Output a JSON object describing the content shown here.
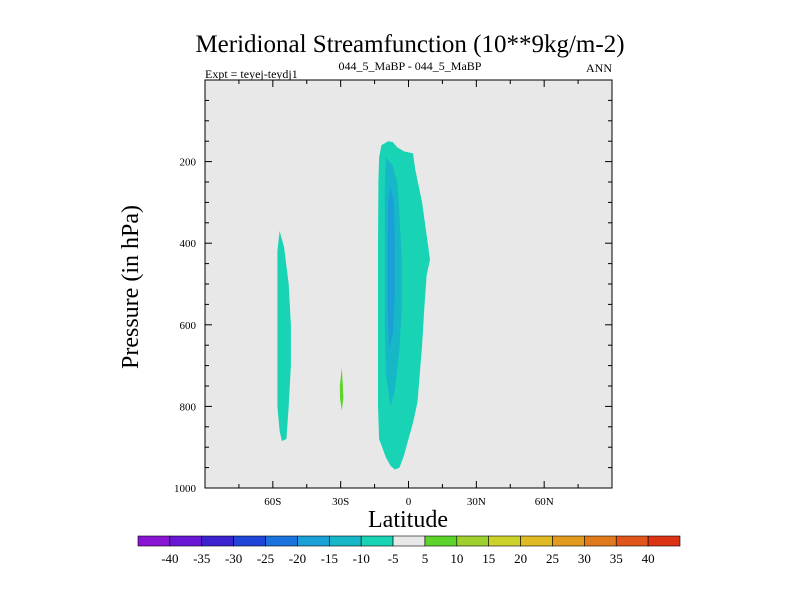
{
  "chart_data": {
    "type": "contour",
    "title": "Meridional Streamfunction (10**9kg/m-2)",
    "subtitle_left": "Expt = teyej-teydj1",
    "subtitle_center": "044_5_MaBP - 044_5_MaBP",
    "subtitle_right": "ANN",
    "xlabel": "Latitude",
    "ylabel": "Pressure (in hPa)",
    "xlim": [
      -90,
      90
    ],
    "ylim": [
      0,
      1000
    ],
    "y_inverted": true,
    "x_ticks": [
      {
        "value": -60,
        "label": "60S"
      },
      {
        "value": -30,
        "label": "30S"
      },
      {
        "value": 0,
        "label": "0"
      },
      {
        "value": 30,
        "label": "30N"
      },
      {
        "value": 60,
        "label": "60N"
      }
    ],
    "y_ticks": [
      {
        "value": 200,
        "label": "200"
      },
      {
        "value": 400,
        "label": "400"
      },
      {
        "value": 600,
        "label": "600"
      },
      {
        "value": 800,
        "label": "800"
      },
      {
        "value": 1000,
        "label": "1000"
      }
    ],
    "background_color": "#e8e8e8",
    "regions": [
      {
        "name": "southern-midlatitude-cell",
        "level": -5,
        "color": "#19d4b4",
        "polygon": [
          [
            -57,
            370
          ],
          [
            -55,
            410
          ],
          [
            -53,
            500
          ],
          [
            -52,
            600
          ],
          [
            -52,
            700
          ],
          [
            -53,
            800
          ],
          [
            -54,
            880
          ],
          [
            -56,
            885
          ],
          [
            -57,
            860
          ],
          [
            -58,
            800
          ],
          [
            -58,
            700
          ],
          [
            -58,
            600
          ],
          [
            -58,
            500
          ],
          [
            -58,
            420
          ]
        ]
      },
      {
        "name": "thirty-south-positive-spot",
        "level": 5,
        "color": "#5cd42b",
        "polygon": [
          [
            -29.5,
            705
          ],
          [
            -29,
            750
          ],
          [
            -28.8,
            780
          ],
          [
            -29.5,
            810
          ],
          [
            -30.3,
            780
          ],
          [
            -30.4,
            750
          ]
        ]
      },
      {
        "name": "equatorial-cell-outer",
        "level": -5,
        "color": "#19d4b4",
        "polygon": [
          [
            -12,
            160
          ],
          [
            -9,
            150
          ],
          [
            -7,
            152
          ],
          [
            -5,
            165
          ],
          [
            -2,
            175
          ],
          [
            2,
            180
          ],
          [
            3,
            220
          ],
          [
            6,
            300
          ],
          [
            8,
            380
          ],
          [
            9.5,
            440
          ],
          [
            8,
            480
          ],
          [
            7,
            560
          ],
          [
            6,
            650
          ],
          [
            5,
            720
          ],
          [
            4,
            790
          ],
          [
            2,
            840
          ],
          [
            0,
            880
          ],
          [
            -2,
            920
          ],
          [
            -4,
            950
          ],
          [
            -6,
            955
          ],
          [
            -8,
            945
          ],
          [
            -10,
            925
          ],
          [
            -13,
            880
          ],
          [
            -13.5,
            800
          ],
          [
            -13.5,
            600
          ],
          [
            -13.5,
            400
          ],
          [
            -13.3,
            250
          ],
          [
            -13,
            190
          ]
        ]
      },
      {
        "name": "equatorial-cell-inner",
        "level": -10,
        "color": "#16b8c8",
        "polygon": [
          [
            -10,
            190
          ],
          [
            -7,
            210
          ],
          [
            -5,
            250
          ],
          [
            -4,
            330
          ],
          [
            -3,
            440
          ],
          [
            -3,
            560
          ],
          [
            -4,
            660
          ],
          [
            -6,
            760
          ],
          [
            -8,
            800
          ],
          [
            -10,
            720
          ],
          [
            -10.5,
            600
          ],
          [
            -10.5,
            400
          ],
          [
            -10.5,
            260
          ]
        ]
      },
      {
        "name": "equatorial-cell-core",
        "level": -15,
        "color": "#1a9fd6",
        "polygon": [
          [
            -8,
            260
          ],
          [
            -6.5,
            300
          ],
          [
            -6,
            400
          ],
          [
            -6,
            520
          ],
          [
            -7,
            620
          ],
          [
            -8.5,
            660
          ],
          [
            -9.3,
            560
          ],
          [
            -9.3,
            400
          ],
          [
            -9,
            300
          ]
        ]
      }
    ],
    "colorbar": {
      "labels": [
        "-40",
        "-35",
        "-30",
        "-25",
        "-20",
        "-15",
        "-10",
        "-5",
        "5",
        "10",
        "15",
        "20",
        "25",
        "30",
        "35",
        "40"
      ],
      "colors": [
        "#8a14d4",
        "#6a16d6",
        "#3a22d0",
        "#1e45d8",
        "#1a72dc",
        "#1a9fd6",
        "#16b8c8",
        "#19d4b4",
        "#e8e8e8",
        "#5cd42b",
        "#9fd12e",
        "#cdd22a",
        "#e0ba22",
        "#e29a1e",
        "#e07a1c",
        "#e0561a",
        "#dc3314"
      ]
    }
  }
}
